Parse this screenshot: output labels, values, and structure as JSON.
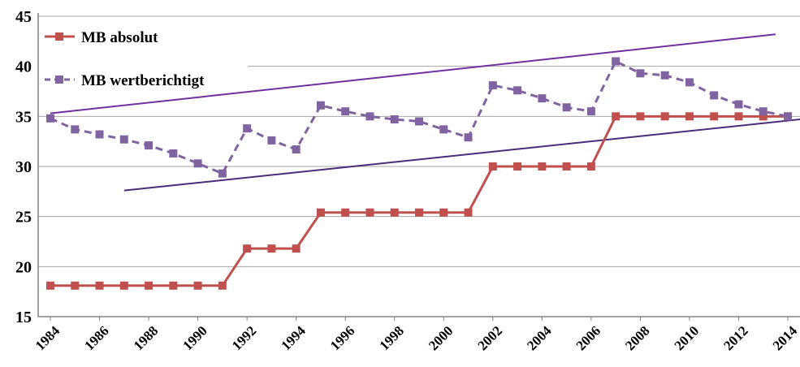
{
  "chart_data": {
    "type": "line",
    "title": "",
    "xlabel": "",
    "ylabel": "",
    "ylim": [
      15,
      45
    ],
    "yticks": [
      15,
      20,
      25,
      30,
      35,
      40,
      45
    ],
    "xlim": [
      1984,
      2014
    ],
    "xticks": [
      1984,
      1986,
      1988,
      1990,
      1992,
      1994,
      1996,
      1998,
      2000,
      2002,
      2004,
      2006,
      2008,
      2010,
      2012,
      2014
    ],
    "grid": true,
    "legend_position": "top-left",
    "x": [
      1984,
      1985,
      1986,
      1987,
      1988,
      1989,
      1990,
      1991,
      1992,
      1993,
      1994,
      1995,
      1996,
      1997,
      1998,
      1999,
      2000,
      2001,
      2002,
      2003,
      2004,
      2005,
      2006,
      2007,
      2008,
      2009,
      2010,
      2011,
      2012,
      2013,
      2014
    ],
    "series": [
      {
        "name": "MB absolut",
        "color": "#c0504d",
        "style": "solid",
        "values": [
          18.1,
          18.1,
          18.1,
          18.1,
          18.1,
          18.1,
          18.1,
          18.1,
          21.8,
          21.8,
          21.8,
          25.4,
          25.4,
          25.4,
          25.4,
          25.4,
          25.4,
          25.4,
          30,
          30,
          30,
          30,
          30,
          35,
          35,
          35,
          35,
          35,
          35,
          35,
          35
        ]
      },
      {
        "name": "MB wertberichtigt",
        "color": "#8064a2",
        "style": "dashed",
        "values": [
          34.8,
          33.7,
          33.2,
          32.7,
          32.1,
          31.3,
          30.3,
          29.3,
          33.8,
          32.6,
          31.7,
          36.1,
          35.5,
          35,
          34.7,
          34.5,
          33.7,
          32.9,
          38.1,
          37.6,
          36.8,
          35.9,
          35.5,
          40.5,
          39.3,
          39.1,
          38.4,
          37.1,
          36.2,
          35.5,
          35
        ]
      }
    ],
    "trend_lines": [
      {
        "color": "#7030a0",
        "from": [
          1984,
          35.3
        ],
        "to": [
          2013.5,
          43.2
        ]
      },
      {
        "color": "#4a2c7a",
        "from": [
          1987,
          27.6
        ],
        "to": [
          2014.5,
          34.7
        ]
      }
    ]
  }
}
